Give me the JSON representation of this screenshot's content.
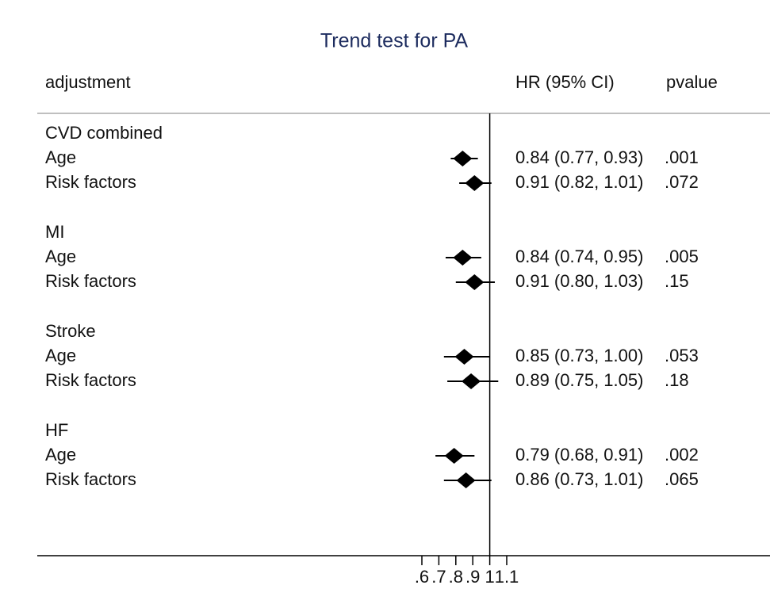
{
  "chart_data": {
    "type": "forest",
    "title": "Trend test for PA",
    "columns": [
      "adjustment",
      "HR (95% CI)",
      "pvalue"
    ],
    "groups": [
      {
        "name": "CVD combined",
        "rows": [
          {
            "label": "Age",
            "hr": 0.84,
            "lo": 0.77,
            "hi": 0.93,
            "ci_label": "0.84 (0.77, 0.93)",
            "pvalue": ".001"
          },
          {
            "label": "Risk factors",
            "hr": 0.91,
            "lo": 0.82,
            "hi": 1.01,
            "ci_label": "0.91 (0.82, 1.01)",
            "pvalue": ".072"
          }
        ]
      },
      {
        "name": "MI",
        "rows": [
          {
            "label": "Age",
            "hr": 0.84,
            "lo": 0.74,
            "hi": 0.95,
            "ci_label": "0.84 (0.74, 0.95)",
            "pvalue": ".005"
          },
          {
            "label": "Risk factors",
            "hr": 0.91,
            "lo": 0.8,
            "hi": 1.03,
            "ci_label": "0.91 (0.80, 1.03)",
            "pvalue": ".15"
          }
        ]
      },
      {
        "name": "Stroke",
        "rows": [
          {
            "label": "Age",
            "hr": 0.85,
            "lo": 0.73,
            "hi": 1.0,
            "ci_label": "0.85 (0.73, 1.00)",
            "pvalue": ".053"
          },
          {
            "label": "Risk factors",
            "hr": 0.89,
            "lo": 0.75,
            "hi": 1.05,
            "ci_label": "0.89 (0.75, 1.05)",
            "pvalue": ".18"
          }
        ]
      },
      {
        "name": "HF",
        "rows": [
          {
            "label": "Age",
            "hr": 0.79,
            "lo": 0.68,
            "hi": 0.91,
            "ci_label": "0.79 (0.68, 0.91)",
            "pvalue": ".002"
          },
          {
            "label": "Risk factors",
            "hr": 0.86,
            "lo": 0.73,
            "hi": 1.01,
            "ci_label": "0.86 (0.73, 1.01)",
            "pvalue": ".065"
          }
        ]
      }
    ],
    "null_line": 1,
    "xlim": [
      0.6,
      1.1
    ],
    "xticks": [
      {
        "value": 0.6,
        "label": ".6"
      },
      {
        "value": 0.7,
        "label": ".7"
      },
      {
        "value": 0.8,
        "label": ".8"
      },
      {
        "value": 0.9,
        "label": ".9"
      },
      1,
      1.1
    ],
    "color": "#000000"
  }
}
